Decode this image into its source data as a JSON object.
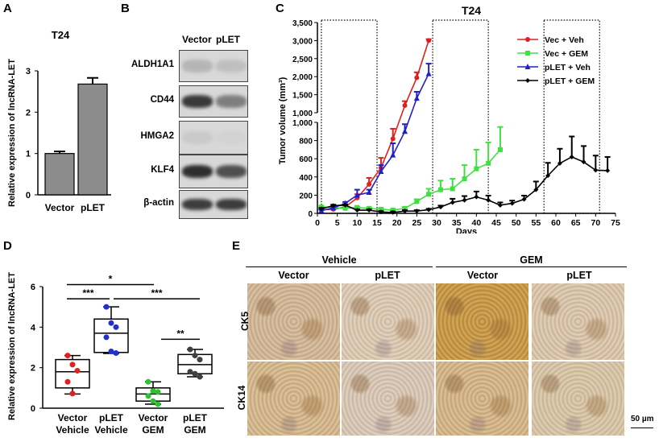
{
  "panel_labels": {
    "a": "A",
    "b": "B",
    "c": "C",
    "d": "D",
    "e": "E"
  },
  "chart_data": [
    {
      "panel": "A",
      "type": "bar",
      "title": "T24",
      "ylabel": "Relative expression of lncRNA-LET",
      "xlabel": "",
      "categories": [
        "Vector",
        "pLET"
      ],
      "values": [
        1.0,
        2.68
      ],
      "errors": [
        0.05,
        0.15
      ],
      "ylim": [
        0,
        3
      ],
      "yticks": [
        "0",
        "1",
        "2",
        "3"
      ],
      "color": "#8c8c8c"
    },
    {
      "panel": "C",
      "type": "line",
      "title": "T24",
      "xlabel": "Days",
      "ylabel": "Tumor volume (mm³)",
      "xlim": [
        0,
        75
      ],
      "xticks": [
        "0",
        "5",
        "10",
        "15",
        "20",
        "25",
        "30",
        "35",
        "40",
        "45",
        "50",
        "55",
        "60",
        "65",
        "70",
        "75"
      ],
      "yticks_lower": [
        "0",
        "200",
        "400",
        "600",
        "800",
        "1,000"
      ],
      "yticks_upper": [
        "1,000",
        "1,500",
        "2,000",
        "2,500",
        "3,000",
        "3,500"
      ],
      "y_axis_break": [
        1000,
        1000
      ],
      "legend_position": "top-right",
      "treatment_windows_days": [
        [
          1,
          15
        ],
        [
          29,
          43
        ],
        [
          57,
          71
        ]
      ],
      "series": [
        {
          "name": "Vec + Veh",
          "color": "#e02020",
          "marker": "circle",
          "x": [
            1,
            4,
            7,
            10,
            13,
            16,
            19,
            22,
            25,
            28
          ],
          "y": [
            40,
            45,
            70,
            170,
            320,
            500,
            820,
            1200,
            1970,
            3000
          ],
          "err": [
            10,
            10,
            15,
            40,
            70,
            110,
            110,
            120,
            150,
            40
          ]
        },
        {
          "name": "Vec + GEM",
          "color": "#40e040",
          "marker": "square",
          "x": [
            1,
            4,
            7,
            10,
            13,
            16,
            19,
            22,
            25,
            28,
            31,
            34,
            37,
            40,
            43,
            46
          ],
          "y": [
            70,
            65,
            55,
            65,
            55,
            45,
            35,
            55,
            130,
            210,
            260,
            270,
            380,
            490,
            550,
            700
          ],
          "err": [
            10,
            10,
            10,
            10,
            10,
            10,
            10,
            15,
            25,
            60,
            100,
            110,
            150,
            210,
            230,
            250
          ]
        },
        {
          "name": "pLET + Veh",
          "color": "#2020c8",
          "marker": "triangle",
          "x": [
            1,
            4,
            7,
            10,
            13,
            16,
            19,
            22,
            25,
            28
          ],
          "y": [
            30,
            60,
            110,
            200,
            230,
            460,
            640,
            900,
            1400,
            2080
          ],
          "err": [
            10,
            10,
            15,
            60,
            30,
            70,
            130,
            80,
            180,
            280
          ]
        },
        {
          "name": "pLET + GEM",
          "color": "#000000",
          "marker": "diamond",
          "x": [
            1,
            4,
            7,
            10,
            13,
            16,
            19,
            22,
            25,
            28,
            31,
            34,
            37,
            40,
            43,
            46,
            49,
            52,
            55,
            58,
            61,
            64,
            67,
            70,
            73
          ],
          "y": [
            50,
            85,
            90,
            35,
            35,
            15,
            10,
            25,
            25,
            40,
            70,
            120,
            145,
            180,
            145,
            90,
            110,
            155,
            260,
            415,
            550,
            620,
            565,
            475,
            470
          ],
          "err": [
            10,
            10,
            10,
            10,
            10,
            10,
            10,
            10,
            10,
            10,
            15,
            40,
            45,
            60,
            50,
            30,
            30,
            40,
            90,
            140,
            160,
            225,
            175,
            160,
            150
          ]
        }
      ]
    },
    {
      "panel": "D",
      "type": "box",
      "ylabel": "Relative expression of lncRNA-LET",
      "ylim": [
        0,
        6
      ],
      "yticks": [
        "0",
        "2",
        "4",
        "6"
      ],
      "groups": [
        {
          "label1": "Vector",
          "label2": "Vehicle",
          "color": "#e02020",
          "min": 0.7,
          "q1": 1.0,
          "median": 1.8,
          "q3": 2.4,
          "max": 2.6,
          "points": [
            2.6,
            2.15,
            1.85,
            1.3,
            0.72
          ]
        },
        {
          "label1": "pLET",
          "label2": "Vehicle",
          "color": "#2030d0",
          "min": 2.7,
          "q1": 2.75,
          "median": 3.7,
          "q3": 4.4,
          "max": 5.0,
          "points": [
            5.0,
            4.2,
            4.0,
            3.5,
            2.8,
            2.72
          ]
        },
        {
          "label1": "Vector",
          "label2": "GEM",
          "color": "#30c030",
          "min": 0.2,
          "q1": 0.35,
          "median": 0.7,
          "q3": 1.0,
          "max": 1.3,
          "points": [
            1.3,
            0.85,
            0.8,
            0.6,
            0.35,
            0.2
          ]
        },
        {
          "label1": "pLET",
          "label2": "GEM",
          "color": "#404040",
          "min": 1.55,
          "q1": 1.7,
          "median": 2.15,
          "q3": 2.65,
          "max": 2.9,
          "points": [
            2.9,
            2.6,
            2.4,
            1.8,
            1.7,
            1.55
          ]
        }
      ],
      "significance": [
        {
          "from": 0,
          "to": 2,
          "level": 6.1,
          "label": "*"
        },
        {
          "from": 0,
          "to": 1,
          "level": 5.4,
          "label": "***"
        },
        {
          "from": 1,
          "to": 3,
          "level": 5.4,
          "label": "***"
        },
        {
          "from": 2,
          "to": 3,
          "level": 3.4,
          "label": "**"
        }
      ]
    }
  ],
  "western": {
    "columns": [
      "Vector",
      "pLET"
    ],
    "rows": [
      "ALDH1A1",
      "CD44",
      "HMGA2",
      "KLF4",
      "β-actin"
    ]
  },
  "ihc": {
    "groups": [
      "Vehicle",
      "GEM"
    ],
    "columns": [
      "Vector",
      "pLET",
      "Vector",
      "pLET"
    ],
    "rows": [
      "CK5",
      "CK14"
    ],
    "scale_bar": "50 µm"
  }
}
